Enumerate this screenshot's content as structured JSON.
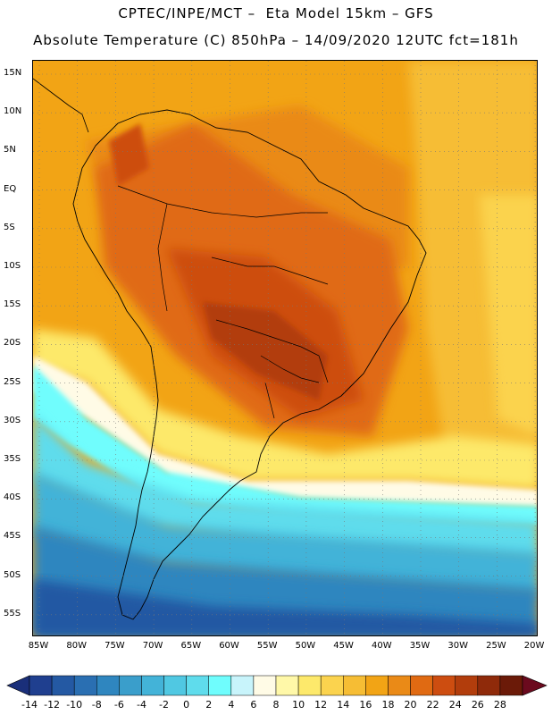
{
  "header": {
    "line1": "CPTEC/INPE/MCT –  Eta Model 15km – GFS",
    "line2": "Absolute Temperature (C) 850hPa – 14/09/2020 12UTC fct=181h"
  },
  "map": {
    "lat_labels": [
      "15N",
      "10N",
      "5N",
      "EQ",
      "5S",
      "10S",
      "15S",
      "20S",
      "25S",
      "30S",
      "35S",
      "40S",
      "45S",
      "50S",
      "55S"
    ],
    "lon_labels": [
      "85W",
      "80W",
      "75W",
      "70W",
      "65W",
      "60W",
      "55W",
      "50W",
      "45W",
      "40W",
      "35W",
      "30W",
      "25W",
      "20W"
    ],
    "grid": "dotted"
  },
  "colorbar": {
    "labels": [
      "-14",
      "-12",
      "-10",
      "-8",
      "-6",
      "-4",
      "-2",
      "0",
      "2",
      "4",
      "6",
      "8",
      "10",
      "12",
      "14",
      "16",
      "18",
      "20",
      "22",
      "24",
      "26",
      "28"
    ],
    "colors": [
      "#1f3f8f",
      "#2459a3",
      "#2a6fb2",
      "#2f86bf",
      "#3a9ecb",
      "#43b3d8",
      "#50c8e2",
      "#5fdcec",
      "#6ffdfd",
      "#c8f4fb",
      "#fffbe6",
      "#fff8a8",
      "#fde96b",
      "#fbd34e",
      "#f6bd34",
      "#f2a415",
      "#ea8a17",
      "#e06a12",
      "#cd4d10",
      "#b23d0c",
      "#8f2a0a",
      "#6b1a08"
    ],
    "left_arrow_color": "#1a2f7a",
    "right_arrow_color": "#6b0a1e"
  }
}
